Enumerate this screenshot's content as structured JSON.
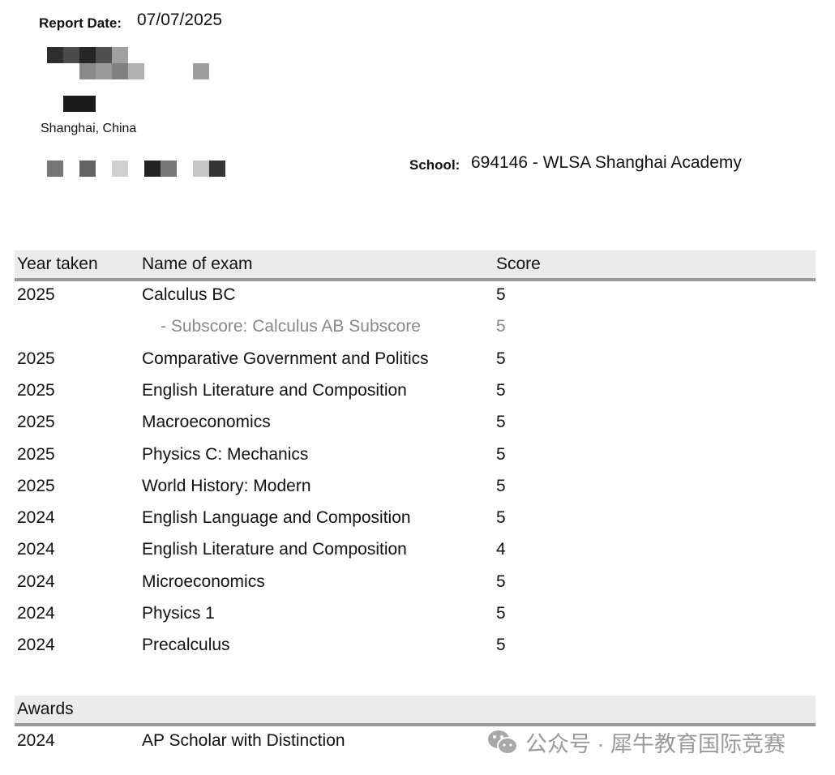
{
  "header": {
    "report_date_label": "Report Date:",
    "report_date": "07/07/2025",
    "city": "Shanghai, China",
    "school_label": "School:",
    "school": "694146 - WLSA Shanghai Academy"
  },
  "scores_table": {
    "columns": [
      "Year taken",
      "Name of exam",
      "Score"
    ],
    "rows": [
      {
        "year": "2025",
        "exam": "Calculus BC",
        "score": "5"
      },
      {
        "year": "",
        "exam": "- Subscore: Calculus AB Subscore",
        "score": "5",
        "subscore": true
      },
      {
        "year": "2025",
        "exam": "Comparative Government and Politics",
        "score": "5"
      },
      {
        "year": "2025",
        "exam": "English Literature and Composition",
        "score": "5"
      },
      {
        "year": "2025",
        "exam": "Macroeconomics",
        "score": "5"
      },
      {
        "year": "2025",
        "exam": "Physics C: Mechanics",
        "score": "5"
      },
      {
        "year": "2025",
        "exam": "World History: Modern",
        "score": "5"
      },
      {
        "year": "2024",
        "exam": "English Language and Composition",
        "score": "5"
      },
      {
        "year": "2024",
        "exam": "English Literature and Composition",
        "score": "4"
      },
      {
        "year": "2024",
        "exam": "Microeconomics",
        "score": "5"
      },
      {
        "year": "2024",
        "exam": "Physics 1",
        "score": "5"
      },
      {
        "year": "2024",
        "exam": "Precalculus",
        "score": "5"
      }
    ]
  },
  "awards": {
    "title": "Awards",
    "rows": [
      {
        "year": "2024",
        "award": "AP Scholar with Distinction"
      }
    ]
  },
  "watermark": {
    "icon": "wechat-icon",
    "text": "公众号 · 犀牛教育国际竞赛"
  }
}
